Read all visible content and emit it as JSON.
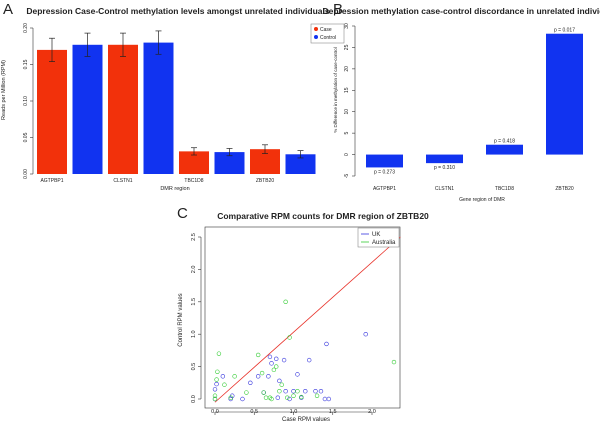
{
  "colors": {
    "case": "#f2310b",
    "control": "#1133f0",
    "uk": "#3333dd",
    "australia": "#33cc33",
    "fit_line": "#e8322a"
  },
  "chart_data": [
    {
      "panel_label": "A",
      "type": "bar",
      "title": "Depression Case-Control methylation levels amongst unrelated individuals",
      "xlabel": "DMR region",
      "ylabel": "Reads per Million (RPM)",
      "ylim": [
        0,
        0.2
      ],
      "yticks": [
        "0.00",
        "0.05",
        "0.10",
        "0.15",
        "0.20"
      ],
      "legend": {
        "position": "top-right",
        "entries": [
          "Case",
          "Control"
        ]
      },
      "bars": [
        {
          "series": "Case",
          "value": 0.17,
          "err": 0.016
        },
        {
          "series": "Control",
          "value": 0.177,
          "err": 0.016
        },
        {
          "series": "Case",
          "value": 0.177,
          "err": 0.016
        },
        {
          "series": "Control",
          "value": 0.18,
          "err": 0.016
        },
        {
          "series": "Case",
          "value": 0.031,
          "err": 0.005
        },
        {
          "series": "Control",
          "value": 0.03,
          "err": 0.005
        },
        {
          "series": "Case",
          "value": 0.034,
          "err": 0.006
        },
        {
          "series": "Control",
          "value": 0.027,
          "err": 0.005
        }
      ],
      "category_labels": [
        "AGTPBP1",
        "CLSTN1",
        "TBC1D8",
        "ZBTB20"
      ]
    },
    {
      "panel_label": "B",
      "type": "bar",
      "title": "Depression methylation case-control discordance in unrelated individuals",
      "xlabel": "Gene region of DMR",
      "ylabel": "% Difference in methylation of case-control",
      "ylim": [
        -5,
        30
      ],
      "yticks": [
        "-5",
        "0",
        "5",
        "10",
        "15",
        "20",
        "25",
        "30"
      ],
      "categories": [
        "AGTPBP1",
        "CLSTN1",
        "TBC1D8",
        "ZBTB20"
      ],
      "values": [
        -3.0,
        -2.0,
        2.3,
        28.2
      ],
      "pvalues": [
        "p = 0.273",
        "p = 0.310",
        "p = 0.418",
        "p = 0.017"
      ]
    },
    {
      "panel_label": "C",
      "type": "scatter",
      "title": "Comparative RPM counts for DMR region of ZBTB20",
      "xlabel": "Case RPM values",
      "ylabel": "Control RPM values",
      "xlim": [
        0,
        2.4
      ],
      "ylim": [
        0,
        2.6
      ],
      "xticks": [
        "0.0",
        "0.5",
        "1.0",
        "1.5",
        "2.0"
      ],
      "yticks": [
        "0.0",
        "0.5",
        "1.0",
        "1.5",
        "2.0",
        "2.5"
      ],
      "legend": {
        "position": "top-right",
        "entries": [
          "UK",
          "Australia"
        ]
      },
      "series": [
        {
          "name": "UK",
          "points": [
            [
              0,
              0
            ],
            [
              0,
              0.15
            ],
            [
              0.02,
              0.23
            ],
            [
              0.1,
              0.35
            ],
            [
              0.2,
              0
            ],
            [
              0.22,
              0.05
            ],
            [
              0.35,
              0
            ],
            [
              0.45,
              0.25
            ],
            [
              0.55,
              0.35
            ],
            [
              0.62,
              0.1
            ],
            [
              0.68,
              0.35
            ],
            [
              0.7,
              0.65
            ],
            [
              0.72,
              0.55
            ],
            [
              0.78,
              0.62
            ],
            [
              0.8,
              0.02
            ],
            [
              0.82,
              0.28
            ],
            [
              0.88,
              0.6
            ],
            [
              0.9,
              0.12
            ],
            [
              0.95,
              0
            ],
            [
              1.0,
              0.12
            ],
            [
              1.05,
              0.38
            ],
            [
              1.1,
              0.02
            ],
            [
              1.15,
              0.12
            ],
            [
              1.2,
              0.6
            ],
            [
              1.28,
              0.12
            ],
            [
              1.35,
              0.12
            ],
            [
              1.4,
              0
            ],
            [
              1.42,
              0.85
            ],
            [
              1.45,
              0
            ],
            [
              1.92,
              1.0
            ]
          ]
        },
        {
          "name": "Australia",
          "points": [
            [
              0,
              0
            ],
            [
              0,
              0.05
            ],
            [
              0.02,
              0.3
            ],
            [
              0.03,
              0.42
            ],
            [
              0.05,
              0.7
            ],
            [
              0.12,
              0.22
            ],
            [
              0.2,
              0.02
            ],
            [
              0.25,
              0.35
            ],
            [
              0.4,
              0.1
            ],
            [
              0.55,
              0.68
            ],
            [
              0.6,
              0.4
            ],
            [
              0.62,
              0.1
            ],
            [
              0.65,
              0.02
            ],
            [
              0.7,
              0.02
            ],
            [
              0.72,
              0
            ],
            [
              0.75,
              0.45
            ],
            [
              0.78,
              0.5
            ],
            [
              0.82,
              0.12
            ],
            [
              0.85,
              0.22
            ],
            [
              0.9,
              1.5
            ],
            [
              0.92,
              0.02
            ],
            [
              0.95,
              0.95
            ],
            [
              1.0,
              0.05
            ],
            [
              1.05,
              0.12
            ],
            [
              1.1,
              0.03
            ],
            [
              1.3,
              0.05
            ],
            [
              2.28,
              0.57
            ]
          ]
        }
      ],
      "fit_line": {
        "slope": 1.08,
        "intercept": -0.05
      }
    }
  ]
}
